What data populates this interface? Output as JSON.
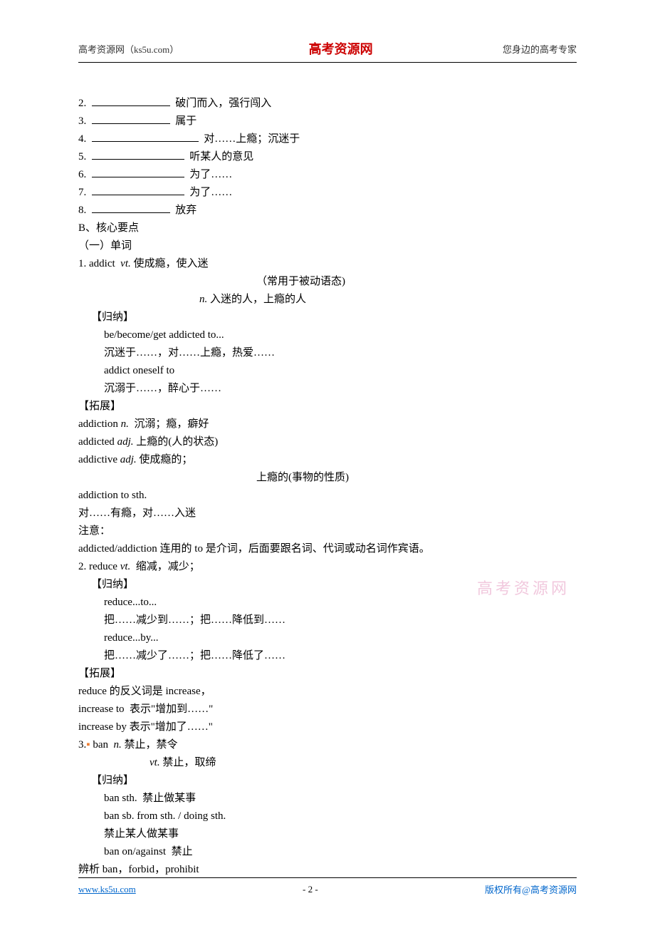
{
  "header": {
    "left": "高考资源网（ks5u.com）",
    "center": "高考资源网",
    "right": "您身边的高考专家"
  },
  "fillBlanks": [
    {
      "num": "2.",
      "blank_width": "small",
      "text": "  破门而入，强行闯入"
    },
    {
      "num": "3.",
      "blank_width": "small",
      "text": "  属于"
    },
    {
      "num": "4.",
      "blank_width": "large",
      "text": "  对……上瘾；沉迷于"
    },
    {
      "num": "5.",
      "blank_width": "medium",
      "text": "  听某人的意见"
    },
    {
      "num": "6.",
      "blank_width": "medium",
      "text": "  为了……"
    },
    {
      "num": "7.",
      "blank_width": "medium",
      "text": "  为了……"
    },
    {
      "num": "8.",
      "blank_width": "small",
      "text": "  放弃"
    }
  ],
  "sectionB_title": "B、核心要点",
  "sectionB_sub": "（一）单词",
  "item1": {
    "line1a": "1. addict  ",
    "line1b": "vt.",
    "line1c": " 使成瘾，使入迷",
    "line2": "（常用于被动语态)",
    "line3a": "n.",
    "line3b": " 入迷的人，上瘾的人",
    "guina_label": "【归纳】",
    "guina_l1": "be/become/get addicted to...",
    "guina_l2": "沉迷于……，对……上瘾，热爱……",
    "guina_l3": "addict oneself to",
    "guina_l4": "沉溺于……，醉心于……",
    "tuozhan_label": "【拓展】",
    "tuozhan_l1a": "addiction ",
    "tuozhan_l1b": "n.",
    "tuozhan_l1c": "  沉溺；瘾，癖好",
    "tuozhan_l2a": "addicted ",
    "tuozhan_l2b": "adj.",
    "tuozhan_l2c": " 上瘾的(人的状态)",
    "tuozhan_l3a": "addictive ",
    "tuozhan_l3b": "adj.",
    "tuozhan_l3c": " 使成瘾的；",
    "tuozhan_l4": "上瘾的(事物的性质)",
    "tuozhan_l5": "addiction to sth.",
    "tuozhan_l6": "对……有瘾，对……入迷",
    "note_label": "注意：",
    "note_text": "addicted/addiction 连用的 to 是介词，后面要跟名词、代词或动名词作宾语。"
  },
  "item2": {
    "line1a": "2. reduce ",
    "line1b": "vt.",
    "line1c": "  缩减，减少；",
    "guina_label": "【归纳】",
    "guina_l1": "reduce...to...",
    "guina_l2": "把……减少到……；把……降低到……",
    "guina_l3": "reduce...by...",
    "guina_l4": "把……减少了……；把……降低了……",
    "tuozhan_label": "【拓展】",
    "tuozhan_l1": "reduce 的反义词是 increase，",
    "tuozhan_l2": "increase to  表示\"增加到……\"",
    "tuozhan_l3": "increase by 表示\"增加了……\""
  },
  "item3": {
    "line1a": "3.",
    "dot": "▪",
    "line1b": " ban  ",
    "line1c": "n.",
    "line1d": " 禁止，禁令",
    "line2a": "vt.",
    "line2b": " 禁止，取缔",
    "guina_label": "【归纳】",
    "guina_l1": "ban sth.  禁止做某事",
    "guina_l2": "ban sb. from sth. / doing sth.",
    "guina_l3": "禁止某人做某事",
    "guina_l4": "ban on/against  禁止",
    "bianxi": "辨析 ban，forbid，prohibit"
  },
  "watermark": "高考资源网",
  "footer": {
    "left": "www.ks5u.com",
    "center": "- 2 -",
    "right": "版权所有@高考资源网"
  }
}
